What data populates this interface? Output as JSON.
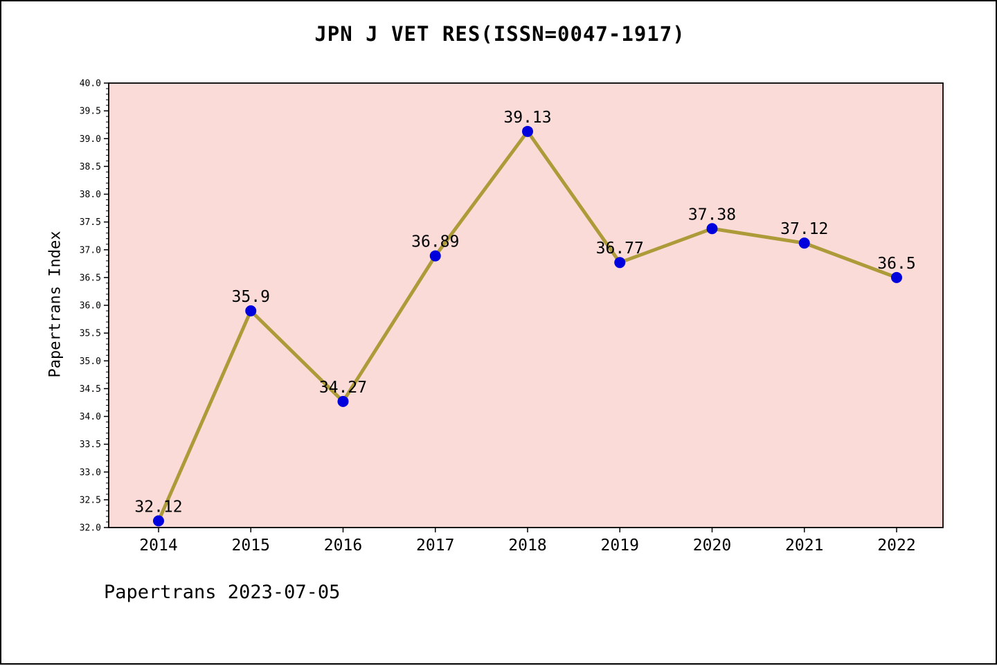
{
  "page": {
    "title": "JPN J VET RES(ISSN=0047-1917)",
    "footer": "Papertrans 2023-07-05"
  },
  "chart_data": {
    "type": "line",
    "title": "JPN J VET RES(ISSN=0047-1917)",
    "xlabel": "",
    "ylabel": "Papertrans Index",
    "categories": [
      2014,
      2015,
      2016,
      2017,
      2018,
      2019,
      2020,
      2021,
      2022
    ],
    "series": [
      {
        "name": "Papertrans Index",
        "values": [
          32.12,
          35.9,
          34.27,
          36.89,
          39.13,
          36.77,
          37.38,
          37.12,
          36.5
        ]
      }
    ],
    "point_labels": [
      "32.12",
      "35.9",
      "34.27",
      "36.89",
      "39.13",
      "36.77",
      "37.38",
      "37.12",
      "36.5"
    ],
    "ylim": [
      32.0,
      40.0
    ],
    "ytick_major": 0.5,
    "ytick_minor": 0.1,
    "grid": false,
    "legend": null,
    "footer": "Papertrans 2023-07-05",
    "colors": {
      "plot_bg": "#fadbd8",
      "line": "#ad9b39",
      "marker": "#0000dd",
      "text": "#000000"
    }
  }
}
